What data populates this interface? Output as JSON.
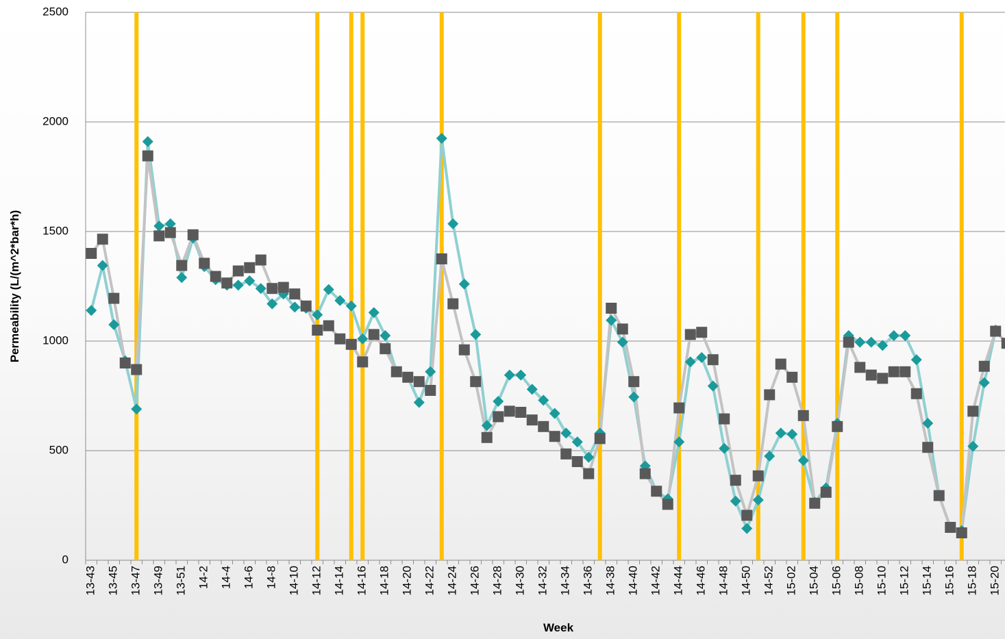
{
  "chart_data": {
    "type": "line",
    "x_label": "Week",
    "y_label": "Permeability (L/(m^2*bar*h)",
    "categories": [
      "13-43",
      null,
      "13-45",
      null,
      "13-47",
      null,
      "13-49",
      null,
      "13-51",
      null,
      "14-2",
      null,
      "14-4",
      null,
      "14-6",
      null,
      "14-8",
      null,
      "14-10",
      null,
      "14-12",
      null,
      "14-14",
      null,
      "14-16",
      null,
      "14-18",
      null,
      "14-20",
      null,
      "14-22",
      null,
      "14-24",
      null,
      "14-26",
      null,
      "14-28",
      null,
      "14-30",
      null,
      "14-32",
      null,
      "14-34",
      null,
      "14-36",
      null,
      "14-38",
      null,
      "14-40",
      null,
      "14-42",
      null,
      "14-44",
      null,
      "14-46",
      null,
      "14-48",
      null,
      "14-50",
      null,
      "14-52",
      null,
      "15-02",
      null,
      "15-04",
      null,
      "15-06",
      null,
      "15-08",
      null,
      "15-10",
      null,
      "15-12",
      null,
      "15-14",
      null,
      "15-16",
      null,
      "15-18",
      null,
      "15-20",
      null
    ],
    "series": [
      {
        "color": "#595959",
        "line_color": "#c3c3c3",
        "marker": "square",
        "values": [
          1400,
          1465,
          1195,
          900,
          870,
          1845,
          1480,
          1495,
          1345,
          1485,
          1355,
          1295,
          1265,
          1320,
          1335,
          1370,
          1240,
          1245,
          1215,
          1160,
          1050,
          1070,
          1010,
          985,
          905,
          1030,
          965,
          860,
          835,
          815,
          775,
          1375,
          1170,
          960,
          815,
          560,
          655,
          680,
          675,
          640,
          610,
          565,
          485,
          450,
          395,
          555,
          1150,
          1055,
          815,
          395,
          315,
          255,
          695,
          1030,
          1040,
          915,
          645,
          365,
          205,
          385,
          755,
          895,
          835,
          660,
          260,
          310,
          610,
          995,
          880,
          845,
          830,
          860,
          860,
          760,
          515,
          295,
          150,
          125,
          680,
          885,
          1045,
          990
        ]
      },
      {
        "color": "#1b9a9b",
        "line_color": "#8fd0d2",
        "marker": "diamond",
        "values": [
          1140,
          1345,
          1075,
          910,
          690,
          1910,
          1525,
          1535,
          1290,
          1470,
          1340,
          1280,
          1255,
          1255,
          1275,
          1240,
          1170,
          1215,
          1155,
          1150,
          1120,
          1235,
          1185,
          1160,
          1010,
          1130,
          1025,
          860,
          835,
          720,
          860,
          1925,
          1535,
          1260,
          1030,
          615,
          725,
          845,
          845,
          780,
          730,
          670,
          580,
          540,
          470,
          580,
          1095,
          995,
          745,
          430,
          315,
          280,
          540,
          905,
          925,
          795,
          510,
          270,
          145,
          275,
          475,
          580,
          575,
          455,
          265,
          330,
          625,
          1025,
          995,
          995,
          980,
          1025,
          1025,
          915,
          625,
          295,
          150,
          135,
          520,
          810,
          1050,
          null
        ]
      }
    ],
    "event_indices": [
      4,
      20,
      23,
      24,
      31,
      45,
      52,
      59,
      63,
      66,
      77
    ],
    "event_color": "#ffc000",
    "ylim": [
      0,
      2500
    ],
    "yticks": [
      0,
      500,
      1000,
      1500,
      2000,
      2500
    ],
    "grid": true
  }
}
